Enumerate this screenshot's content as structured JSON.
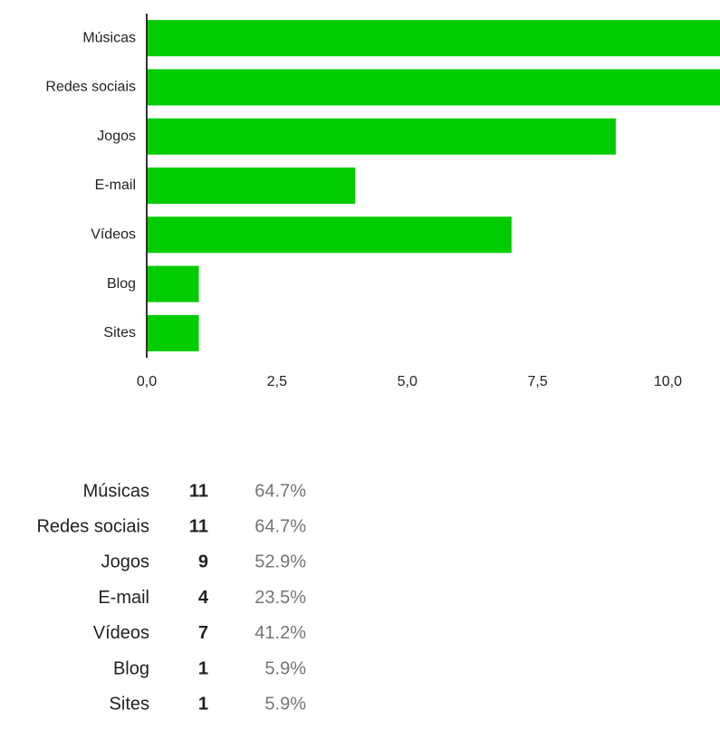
{
  "chart_data": {
    "type": "bar",
    "orientation": "horizontal",
    "categories": [
      "Músicas",
      "Redes sociais",
      "Jogos",
      "E-mail",
      "Vídeos",
      "Blog",
      "Sites"
    ],
    "values": [
      11,
      11,
      9,
      4,
      7,
      1,
      1
    ],
    "color": "#00cc00",
    "xlim": [
      0,
      11
    ],
    "xticks": [
      {
        "value": 0,
        "label": "0,0"
      },
      {
        "value": 2.5,
        "label": "2,5"
      },
      {
        "value": 5,
        "label": "5,0"
      },
      {
        "value": 7.5,
        "label": "7,5"
      },
      {
        "value": 10,
        "label": "10,0"
      }
    ]
  },
  "table": {
    "rows": [
      [
        "Músicas",
        11,
        "64.7%"
      ],
      [
        "Redes sociais",
        11,
        "64.7%"
      ],
      [
        "Jogos",
        9,
        "52.9%"
      ],
      [
        "E-mail",
        4,
        "23.5%"
      ],
      [
        "Vídeos",
        7,
        "41.2%"
      ],
      [
        "Blog",
        1,
        "5.9%"
      ],
      [
        "Sites",
        1,
        "5.9%"
      ]
    ]
  }
}
